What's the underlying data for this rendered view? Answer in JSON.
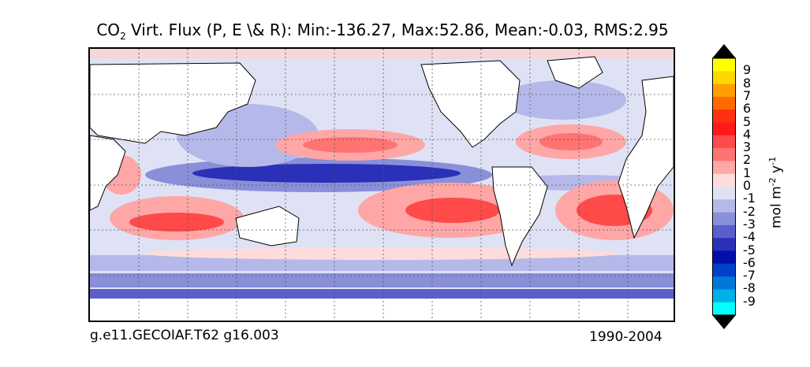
{
  "title": {
    "prefix": "CO",
    "subscript": "2",
    "text": " Virt. Flux (P, E \\& R): Min:-136.27, Max:52.86, Mean:-0.03, RMS:2.95"
  },
  "footer": {
    "left": "g.e11.GECOIAF.T62 g16.003",
    "right": "1990-2004"
  },
  "colorbar": {
    "unit_label": "mol m",
    "unit_exp1": "-2",
    "unit_mid": " y",
    "unit_exp2": "-1",
    "ticks": [
      "9",
      "8",
      "7",
      "6",
      "5",
      "4",
      "3",
      "2",
      "1",
      "0",
      "-1",
      "-2",
      "-3",
      "-4",
      "-5",
      "-6",
      "-7",
      "-8",
      "-9"
    ],
    "colors": [
      "#ffff00",
      "#ffd700",
      "#ff9f00",
      "#ff6a00",
      "#ff3010",
      "#ff1a1a",
      "#ff4a4a",
      "#ff7373",
      "#ffa6a6",
      "#ffdcdc",
      "#dfe2f5",
      "#b5b9ea",
      "#8a8fd9",
      "#5a5fcc",
      "#2a30b8",
      "#0010a8",
      "#0040c8",
      "#0078d8",
      "#00b0e8",
      "#00ffff"
    ],
    "top_extend_color": "#000000",
    "bottom_extend_color": "#000000"
  },
  "legend_scale": {
    "positive": "#ff4a4a",
    "negative": "#2a30b8",
    "land": "#ffffff"
  }
}
